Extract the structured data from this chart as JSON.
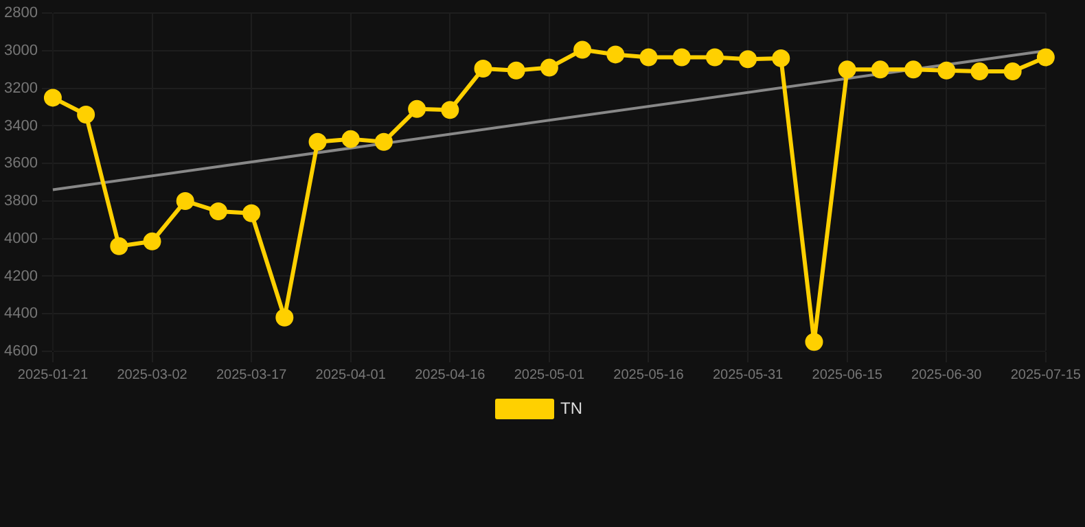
{
  "chart_data": {
    "type": "line",
    "categories": [
      "2025-01-21",
      null,
      null,
      "2025-03-02",
      null,
      null,
      "2025-03-17",
      null,
      null,
      "2025-04-01",
      null,
      null,
      "2025-04-16",
      null,
      null,
      "2025-05-01",
      null,
      null,
      "2025-05-16",
      null,
      null,
      "2025-05-31",
      null,
      null,
      "2025-06-15",
      null,
      null,
      "2025-06-30",
      null,
      null,
      "2025-07-15"
    ],
    "series": [
      {
        "name": "TN",
        "color": "#ffd000",
        "values": [
          3250,
          3340,
          4040,
          4015,
          3800,
          3855,
          3865,
          4420,
          3485,
          3470,
          3485,
          3310,
          3315,
          3095,
          3105,
          3090,
          2995,
          3020,
          3035,
          3035,
          3035,
          3045,
          3040,
          4550,
          3100,
          3100,
          3100,
          3105,
          3110,
          3110,
          3035
        ]
      },
      {
        "type": "line",
        "color": "#888888",
        "marker": "none",
        "values": [
          3740,
          null,
          null,
          null,
          null,
          null,
          null,
          null,
          null,
          null,
          null,
          null,
          null,
          null,
          null,
          null,
          null,
          null,
          null,
          null,
          null,
          null,
          null,
          null,
          null,
          null,
          null,
          null,
          null,
          null,
          3000
        ]
      }
    ],
    "ylim": [
      4600,
      2800
    ],
    "yticks": [
      2800,
      3000,
      3200,
      3400,
      3600,
      3800,
      4000,
      4200,
      4400,
      4600
    ],
    "grid": true,
    "legend": "bottom",
    "marker": "circle",
    "line_style": "solid"
  }
}
